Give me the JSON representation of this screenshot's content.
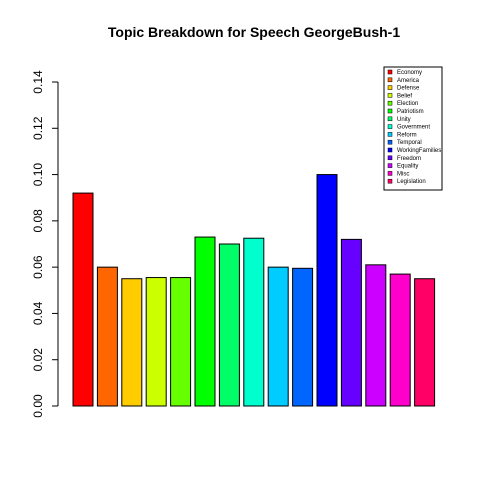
{
  "chart_data": {
    "type": "bar",
    "title": "Topic Breakdown for Speech GeorgeBush-1",
    "xlabel": "",
    "ylabel": "",
    "ylim": [
      0,
      0.14
    ],
    "yticks": [
      "0.00",
      "0.02",
      "0.04",
      "0.06",
      "0.08",
      "0.10",
      "0.12",
      "0.14"
    ],
    "grid": false,
    "legend_position": "top-right",
    "categories": [
      "Economy",
      "America",
      "Defense",
      "Belief",
      "Election",
      "Patriotism",
      "Unity",
      "Government",
      "Reform",
      "Temporal",
      "WorkingFamilies",
      "Freedom",
      "Equality",
      "Misc",
      "Legislation"
    ],
    "values": [
      0.092,
      0.06,
      0.055,
      0.0555,
      0.0555,
      0.073,
      0.07,
      0.0725,
      0.06,
      0.0595,
      0.1,
      0.072,
      0.061,
      0.057,
      0.055
    ],
    "colors": [
      "#FF0000",
      "#FF6600",
      "#FFCC00",
      "#CCFF00",
      "#66FF00",
      "#00FF00",
      "#00FF66",
      "#00FFCC",
      "#00CCFF",
      "#0066FF",
      "#0000FF",
      "#6600FF",
      "#CC00FF",
      "#FF00CC",
      "#FF0066"
    ]
  }
}
